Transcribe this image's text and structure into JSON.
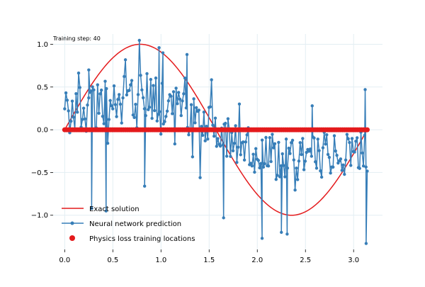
{
  "chart_data": {
    "type": "line",
    "title": "",
    "xlabel": "",
    "ylabel": "",
    "annotation": "Training step: 40",
    "xlim": [
      -0.12,
      3.3
    ],
    "ylim": [
      -1.4,
      1.12
    ],
    "xticks": [
      0.0,
      0.5,
      1.0,
      1.5,
      2.0,
      2.5,
      3.0
    ],
    "xtick_labels": [
      "0.0",
      "0.5",
      "1.0",
      "1.5",
      "2.0",
      "2.5",
      "3.0"
    ],
    "yticks": [
      1.0,
      0.5,
      0.0,
      -0.5,
      -1.0
    ],
    "ytick_labels": [
      "1.0",
      "0.5",
      "0.0",
      "−0.5",
      "−1.0"
    ],
    "grid": true,
    "legend_position": "lower-left",
    "colors": {
      "exact": "#e41a1c",
      "prediction": "#377eb8",
      "physics_points": "#e41a1c",
      "grid": "#e3eef3"
    },
    "series": [
      {
        "name": "Exact solution",
        "kind": "line",
        "function": "sin(2x)",
        "x_range": [
          0,
          3.1416
        ]
      },
      {
        "name": "Neural network prediction",
        "kind": "line-markers",
        "trend": [
          [
            0.0,
            0.2
          ],
          [
            0.4,
            0.3
          ],
          [
            0.8,
            0.4
          ],
          [
            1.0,
            0.35
          ],
          [
            1.3,
            0.2
          ],
          [
            1.6,
            0.0
          ],
          [
            1.8,
            -0.15
          ],
          [
            2.0,
            -0.25
          ],
          [
            2.3,
            -0.35
          ],
          [
            2.6,
            -0.35
          ],
          [
            2.9,
            -0.3
          ],
          [
            3.14,
            -0.25
          ]
        ],
        "annotated_points": [
          [
            0.25,
            0.7
          ],
          [
            0.28,
            -0.92
          ],
          [
            0.43,
            -0.95
          ],
          [
            0.83,
            -0.66
          ],
          [
            0.98,
            0.96
          ],
          [
            1.02,
            0.9
          ],
          [
            1.27,
            0.88
          ],
          [
            1.65,
            -1.03
          ],
          [
            2.05,
            -1.27
          ],
          [
            2.25,
            -1.2
          ],
          [
            2.31,
            -1.22
          ],
          [
            3.12,
            0.47
          ],
          [
            3.13,
            -1.33
          ],
          [
            2.57,
            0.28
          ]
        ]
      },
      {
        "name": "Physics loss training locations",
        "kind": "scatter",
        "y_value": 0.0,
        "x_range": [
          0,
          3.1416
        ]
      }
    ]
  }
}
